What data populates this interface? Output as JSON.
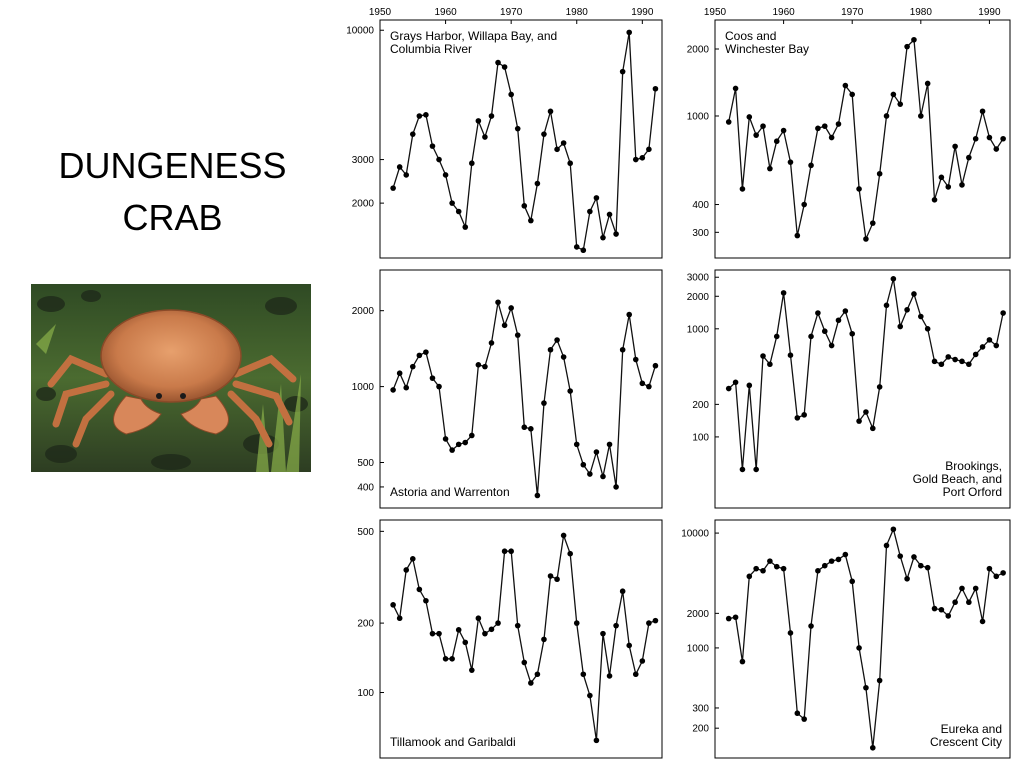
{
  "slide": {
    "title_line1": "DUNGENESS",
    "title_line2": "CRAB"
  },
  "photo": {
    "subject": "dungeness-crab-photo",
    "shell_color": "#c97a4a",
    "background_color": "#3c5a2a"
  },
  "chart_data": [
    {
      "type": "line",
      "label_lines": [
        "Grays Harbor, Willapa Bay, and",
        "Columbia River"
      ],
      "label_pos": "top-left",
      "log_scale": true,
      "xlim": [
        1950,
        1993
      ],
      "ylim": [
        1200,
        11000
      ],
      "xticks": [
        "1950",
        "1960",
        "1970",
        "1980",
        "1990"
      ],
      "yticks": [
        "2000",
        "3000",
        "10000"
      ],
      "x": [
        1952,
        1953,
        1954,
        1955,
        1956,
        1957,
        1958,
        1959,
        1960,
        1961,
        1962,
        1963,
        1964,
        1965,
        1966,
        1967,
        1968,
        1969,
        1970,
        1971,
        1972,
        1973,
        1974,
        1975,
        1976,
        1977,
        1978,
        1979,
        1980,
        1981,
        1982,
        1983,
        1984,
        1985,
        1986,
        1987,
        1988,
        1989,
        1990,
        1991,
        1992
      ],
      "y": [
        2300,
        2800,
        2600,
        3800,
        4500,
        4550,
        3400,
        3000,
        2600,
        2000,
        1850,
        1600,
        2900,
        4300,
        3700,
        4500,
        7400,
        7100,
        5500,
        4000,
        1950,
        1700,
        2400,
        3800,
        4700,
        3300,
        3500,
        2900,
        1330,
        1290,
        1850,
        2100,
        1450,
        1800,
        1500,
        6800,
        9800,
        3000,
        3050,
        3300,
        5800
      ]
    },
    {
      "type": "line",
      "label_lines": [
        "Coos and",
        "Winchester Bay"
      ],
      "label_pos": "top-left",
      "log_scale": true,
      "xlim": [
        1950,
        1993
      ],
      "ylim": [
        230,
        2700
      ],
      "xticks": [
        "1950",
        "1960",
        "1970",
        "1980",
        "1990"
      ],
      "yticks": [
        "300",
        "400",
        "1000",
        "2000"
      ],
      "x": [
        1952,
        1953,
        1954,
        1955,
        1956,
        1957,
        1958,
        1959,
        1960,
        1961,
        1962,
        1963,
        1964,
        1965,
        1966,
        1967,
        1968,
        1969,
        1970,
        1971,
        1972,
        1973,
        1974,
        1975,
        1976,
        1977,
        1978,
        1979,
        1980,
        1981,
        1982,
        1983,
        1984,
        1985,
        1986,
        1987,
        1988,
        1989,
        1990,
        1991,
        1992
      ],
      "y": [
        940,
        1330,
        470,
        990,
        820,
        900,
        580,
        770,
        860,
        620,
        290,
        400,
        600,
        880,
        900,
        800,
        920,
        1370,
        1250,
        470,
        280,
        330,
        550,
        1000,
        1250,
        1130,
        2050,
        2200,
        1000,
        1400,
        420,
        530,
        480,
        730,
        490,
        650,
        790,
        1050,
        800,
        710,
        790
      ]
    },
    {
      "type": "line",
      "label_lines": [
        "Astoria and Warrenton"
      ],
      "label_pos": "bottom-left",
      "log_scale": true,
      "xlim": [
        1950,
        1993
      ],
      "ylim": [
        330,
        2900
      ],
      "xticks": [],
      "yticks": [
        "400",
        "500",
        "1000",
        "2000"
      ],
      "x": [
        1952,
        1953,
        1954,
        1955,
        1956,
        1957,
        1958,
        1959,
        1960,
        1961,
        1962,
        1963,
        1964,
        1965,
        1966,
        1967,
        1968,
        1969,
        1970,
        1971,
        1972,
        1973,
        1974,
        1975,
        1976,
        1977,
        1978,
        1979,
        1980,
        1981,
        1982,
        1983,
        1984,
        1985,
        1986,
        1987,
        1988,
        1989,
        1990,
        1991,
        1992
      ],
      "y": [
        970,
        1130,
        990,
        1200,
        1330,
        1370,
        1080,
        1000,
        620,
        560,
        590,
        600,
        640,
        1220,
        1200,
        1490,
        2160,
        1750,
        2050,
        1600,
        690,
        680,
        370,
        860,
        1400,
        1530,
        1310,
        960,
        590,
        490,
        450,
        550,
        440,
        590,
        400,
        1400,
        1930,
        1280,
        1030,
        1000,
        1210
      ]
    },
    {
      "type": "line",
      "label_lines": [
        "Brookings,",
        "Gold Beach, and",
        "Port Orford"
      ],
      "label_pos": "bottom-right",
      "log_scale": true,
      "xlim": [
        1950,
        1993
      ],
      "ylim": [
        22,
        3500
      ],
      "xticks": [],
      "yticks": [
        "100",
        "200",
        "1000",
        "2000",
        "3000"
      ],
      "x": [
        1952,
        1953,
        1954,
        1955,
        1956,
        1957,
        1958,
        1959,
        1960,
        1961,
        1962,
        1963,
        1964,
        1965,
        1966,
        1967,
        1968,
        1969,
        1970,
        1971,
        1972,
        1973,
        1974,
        1975,
        1976,
        1977,
        1978,
        1979,
        1980,
        1981,
        1982,
        1983,
        1984,
        1985,
        1986,
        1987,
        1988,
        1989,
        1990,
        1991,
        1992
      ],
      "y": [
        280,
        320,
        50,
        300,
        50,
        560,
        470,
        850,
        2150,
        570,
        150,
        160,
        850,
        1400,
        950,
        700,
        1200,
        1460,
        900,
        140,
        170,
        120,
        290,
        1650,
        2900,
        1050,
        1500,
        2100,
        1300,
        1000,
        500,
        470,
        550,
        520,
        500,
        470,
        580,
        680,
        790,
        700,
        1400
      ]
    },
    {
      "type": "line",
      "label_lines": [
        "Tillamook and Garibaldi"
      ],
      "label_pos": "bottom-left",
      "log_scale": true,
      "xlim": [
        1950,
        1993
      ],
      "ylim": [
        52,
        560
      ],
      "xticks": [],
      "yticks": [
        "100",
        "200",
        "500"
      ],
      "x": [
        1952,
        1953,
        1954,
        1955,
        1956,
        1957,
        1958,
        1959,
        1960,
        1961,
        1962,
        1963,
        1964,
        1965,
        1966,
        1967,
        1968,
        1969,
        1970,
        1971,
        1972,
        1973,
        1974,
        1975,
        1976,
        1977,
        1978,
        1979,
        1980,
        1981,
        1982,
        1983,
        1984,
        1985,
        1986,
        1987,
        1988,
        1989,
        1990,
        1991,
        1992
      ],
      "y": [
        240,
        210,
        340,
        380,
        280,
        250,
        180,
        180,
        140,
        140,
        187,
        165,
        125,
        210,
        180,
        188,
        200,
        410,
        410,
        195,
        135,
        110,
        120,
        170,
        320,
        310,
        480,
        400,
        200,
        120,
        97,
        62,
        180,
        118,
        195,
        275,
        160,
        120,
        137,
        200,
        205
      ]
    },
    {
      "type": "line",
      "label_lines": [
        "Eureka and",
        "Crescent City"
      ],
      "label_pos": "bottom-right",
      "log_scale": true,
      "xlim": [
        1950,
        1993
      ],
      "ylim": [
        110,
        13000
      ],
      "xticks": [],
      "yticks": [
        "200",
        "300",
        "1000",
        "2000",
        "10000"
      ],
      "x": [
        1952,
        1953,
        1954,
        1955,
        1956,
        1957,
        1958,
        1959,
        1960,
        1961,
        1962,
        1963,
        1964,
        1965,
        1966,
        1967,
        1968,
        1969,
        1970,
        1971,
        1972,
        1973,
        1974,
        1975,
        1976,
        1977,
        1978,
        1979,
        1980,
        1981,
        1982,
        1983,
        1984,
        1985,
        1986,
        1987,
        1988,
        1989,
        1990,
        1991,
        1992
      ],
      "y": [
        1800,
        1850,
        760,
        4200,
        4900,
        4700,
        5700,
        5100,
        4900,
        1350,
        270,
        240,
        1550,
        4700,
        5200,
        5700,
        5900,
        6500,
        3800,
        1000,
        450,
        135,
        520,
        7800,
        10800,
        6300,
        4000,
        6200,
        5200,
        5000,
        2200,
        2150,
        1900,
        2500,
        3300,
        2500,
        3300,
        1700,
        4900,
        4200,
        4500
      ]
    }
  ]
}
